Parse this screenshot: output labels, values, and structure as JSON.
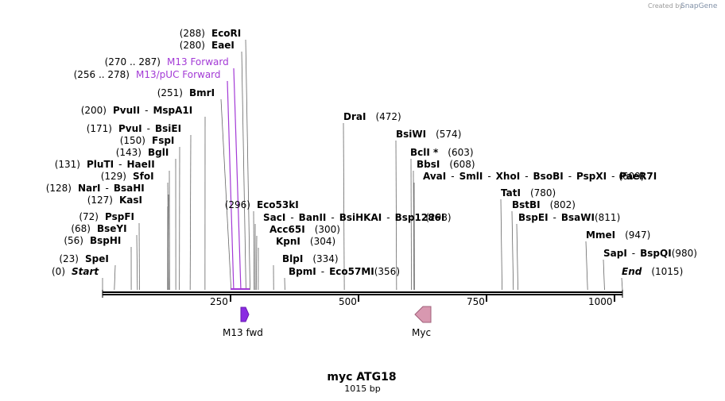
{
  "credit": {
    "created_by": "Created by",
    "brand": "SnapGene"
  },
  "plasmid": {
    "name": "myc ATG18",
    "length_label": "1015 bp",
    "length": 1015
  },
  "axis": {
    "ticks": [
      "250",
      "500",
      "750",
      "1000"
    ]
  },
  "sites": [
    {
      "pos": "(288)",
      "segs": [
        {
          "t": "EcoRI",
          "b": true
        }
      ],
      "at": 288
    },
    {
      "pos": "(280)",
      "segs": [
        {
          "t": "EaeI",
          "b": true
        }
      ],
      "at": 280
    },
    {
      "pos": "(270 .. 287)",
      "segs": [
        {
          "t": "M13 Forward",
          "b": false
        }
      ],
      "at": 270,
      "primer": true
    },
    {
      "pos": "(256 .. 278)",
      "segs": [
        {
          "t": "M13/pUC Forward",
          "b": false
        }
      ],
      "at": 256,
      "primer": true
    },
    {
      "pos": "(251)",
      "segs": [
        {
          "t": "BmrI",
          "b": true
        }
      ],
      "at": 251
    },
    {
      "pos": "(200)",
      "segs": [
        {
          "t": "PvuII",
          "b": true
        },
        {
          "t": "-",
          "b": false
        },
        {
          "t": "MspA1I",
          "b": true
        }
      ],
      "at": 200
    },
    {
      "pos": "(171)",
      "segs": [
        {
          "t": "PvuI",
          "b": true
        },
        {
          "t": "-",
          "b": false
        },
        {
          "t": "BsiEI",
          "b": true
        }
      ],
      "at": 171
    },
    {
      "pos": "(150)",
      "segs": [
        {
          "t": "FspI",
          "b": true
        }
      ],
      "at": 150
    },
    {
      "pos": "(143)",
      "segs": [
        {
          "t": "BglI",
          "b": true
        }
      ],
      "at": 143
    },
    {
      "pos": "(131)",
      "segs": [
        {
          "t": "PluTI",
          "b": true
        },
        {
          "t": "-",
          "b": false
        },
        {
          "t": "HaeII",
          "b": true
        }
      ],
      "at": 131
    },
    {
      "pos": "(129)",
      "segs": [
        {
          "t": "SfoI",
          "b": true
        }
      ],
      "at": 129
    },
    {
      "pos": "(128)",
      "segs": [
        {
          "t": "NarI",
          "b": true
        },
        {
          "t": "-",
          "b": false
        },
        {
          "t": "BsaHI",
          "b": true
        }
      ],
      "at": 128
    },
    {
      "pos": "(127)",
      "segs": [
        {
          "t": "KasI",
          "b": true
        }
      ],
      "at": 127
    },
    {
      "pos": "(72)",
      "segs": [
        {
          "t": "PspFI",
          "b": true
        }
      ],
      "at": 72
    },
    {
      "pos": "(68)",
      "segs": [
        {
          "t": "BseYI",
          "b": true
        }
      ],
      "at": 68
    },
    {
      "pos": "(56)",
      "segs": [
        {
          "t": "BspHI",
          "b": true
        }
      ],
      "at": 56
    },
    {
      "pos": "(23)",
      "segs": [
        {
          "t": "SpeI",
          "b": true
        }
      ],
      "at": 23
    },
    {
      "pos": "(0)",
      "segs": [
        {
          "t": "Start",
          "b": true,
          "i": true
        }
      ],
      "at": 0
    },
    {
      "pos": "(472)",
      "segs": [
        {
          "t": "DraI",
          "b": true
        }
      ],
      "at": 472
    },
    {
      "pos": "(574)",
      "segs": [
        {
          "t": "BsiWI",
          "b": true
        }
      ],
      "at": 574
    },
    {
      "pos": "(603)",
      "segs": [
        {
          "t": "BclI *",
          "b": true
        }
      ],
      "at": 603
    },
    {
      "pos": "(608)",
      "segs": [
        {
          "t": "BbsI",
          "b": true
        }
      ],
      "at": 608
    },
    {
      "pos": "(609)",
      "segs": [
        {
          "t": "AvaI",
          "b": true
        },
        {
          "t": "-",
          "b": false
        },
        {
          "t": "SmlI",
          "b": true
        },
        {
          "t": "-",
          "b": false
        },
        {
          "t": "XhoI",
          "b": true
        },
        {
          "t": "-",
          "b": false
        },
        {
          "t": "BsoBI",
          "b": true
        },
        {
          "t": "-",
          "b": false
        },
        {
          "t": "PspXI",
          "b": true
        },
        {
          "t": "-",
          "b": false
        },
        {
          "t": "PaeR7I",
          "b": true
        }
      ],
      "at": 609
    },
    {
      "pos": "(296)",
      "segs": [
        {
          "t": "Eco53kI",
          "b": true
        }
      ],
      "at": 296
    },
    {
      "pos": "(298)",
      "segs": [
        {
          "t": "SacI",
          "b": true
        },
        {
          "t": "-",
          "b": false
        },
        {
          "t": "BanII",
          "b": true
        },
        {
          "t": "-",
          "b": false
        },
        {
          "t": "BsiHKAI",
          "b": true
        },
        {
          "t": "-",
          "b": false
        },
        {
          "t": "Bsp1286I",
          "b": true
        }
      ],
      "at": 298
    },
    {
      "pos": "(300)",
      "segs": [
        {
          "t": "Acc65I",
          "b": true
        }
      ],
      "at": 300
    },
    {
      "pos": "(304)",
      "segs": [
        {
          "t": "KpnI",
          "b": true
        }
      ],
      "at": 304
    },
    {
      "pos": "(334)",
      "segs": [
        {
          "t": "BlpI",
          "b": true
        }
      ],
      "at": 334
    },
    {
      "pos": "(356)",
      "segs": [
        {
          "t": "BpmI",
          "b": true
        },
        {
          "t": "-",
          "b": false
        },
        {
          "t": "Eco57MI",
          "b": true
        }
      ],
      "at": 356
    },
    {
      "pos": "(780)",
      "segs": [
        {
          "t": "TatI",
          "b": true
        }
      ],
      "at": 780
    },
    {
      "pos": "(802)",
      "segs": [
        {
          "t": "BstBI",
          "b": true
        }
      ],
      "at": 802
    },
    {
      "pos": "(811)",
      "segs": [
        {
          "t": "BspEI",
          "b": true
        },
        {
          "t": "-",
          "b": false
        },
        {
          "t": "BsaWI",
          "b": true
        }
      ],
      "at": 811
    },
    {
      "pos": "(947)",
      "segs": [
        {
          "t": "MmeI",
          "b": true
        }
      ],
      "at": 947
    },
    {
      "pos": "(980)",
      "segs": [
        {
          "t": "SapI",
          "b": true
        },
        {
          "t": "-",
          "b": false
        },
        {
          "t": "BspQI",
          "b": true
        }
      ],
      "at": 980
    },
    {
      "pos": "(1015)",
      "segs": [
        {
          "t": "End",
          "b": true,
          "i": true
        }
      ],
      "at": 1015
    }
  ],
  "features": [
    {
      "name": "M13 fwd",
      "color": "#8a2be2",
      "dir": "right",
      "start": 270,
      "end": 287
    },
    {
      "name": "Myc",
      "color": "#d898b0",
      "dir": "left",
      "start": 605,
      "end": 640
    }
  ],
  "colors": {
    "primer": "#a33ad6",
    "backbone": "#000000",
    "line": "#555555"
  }
}
